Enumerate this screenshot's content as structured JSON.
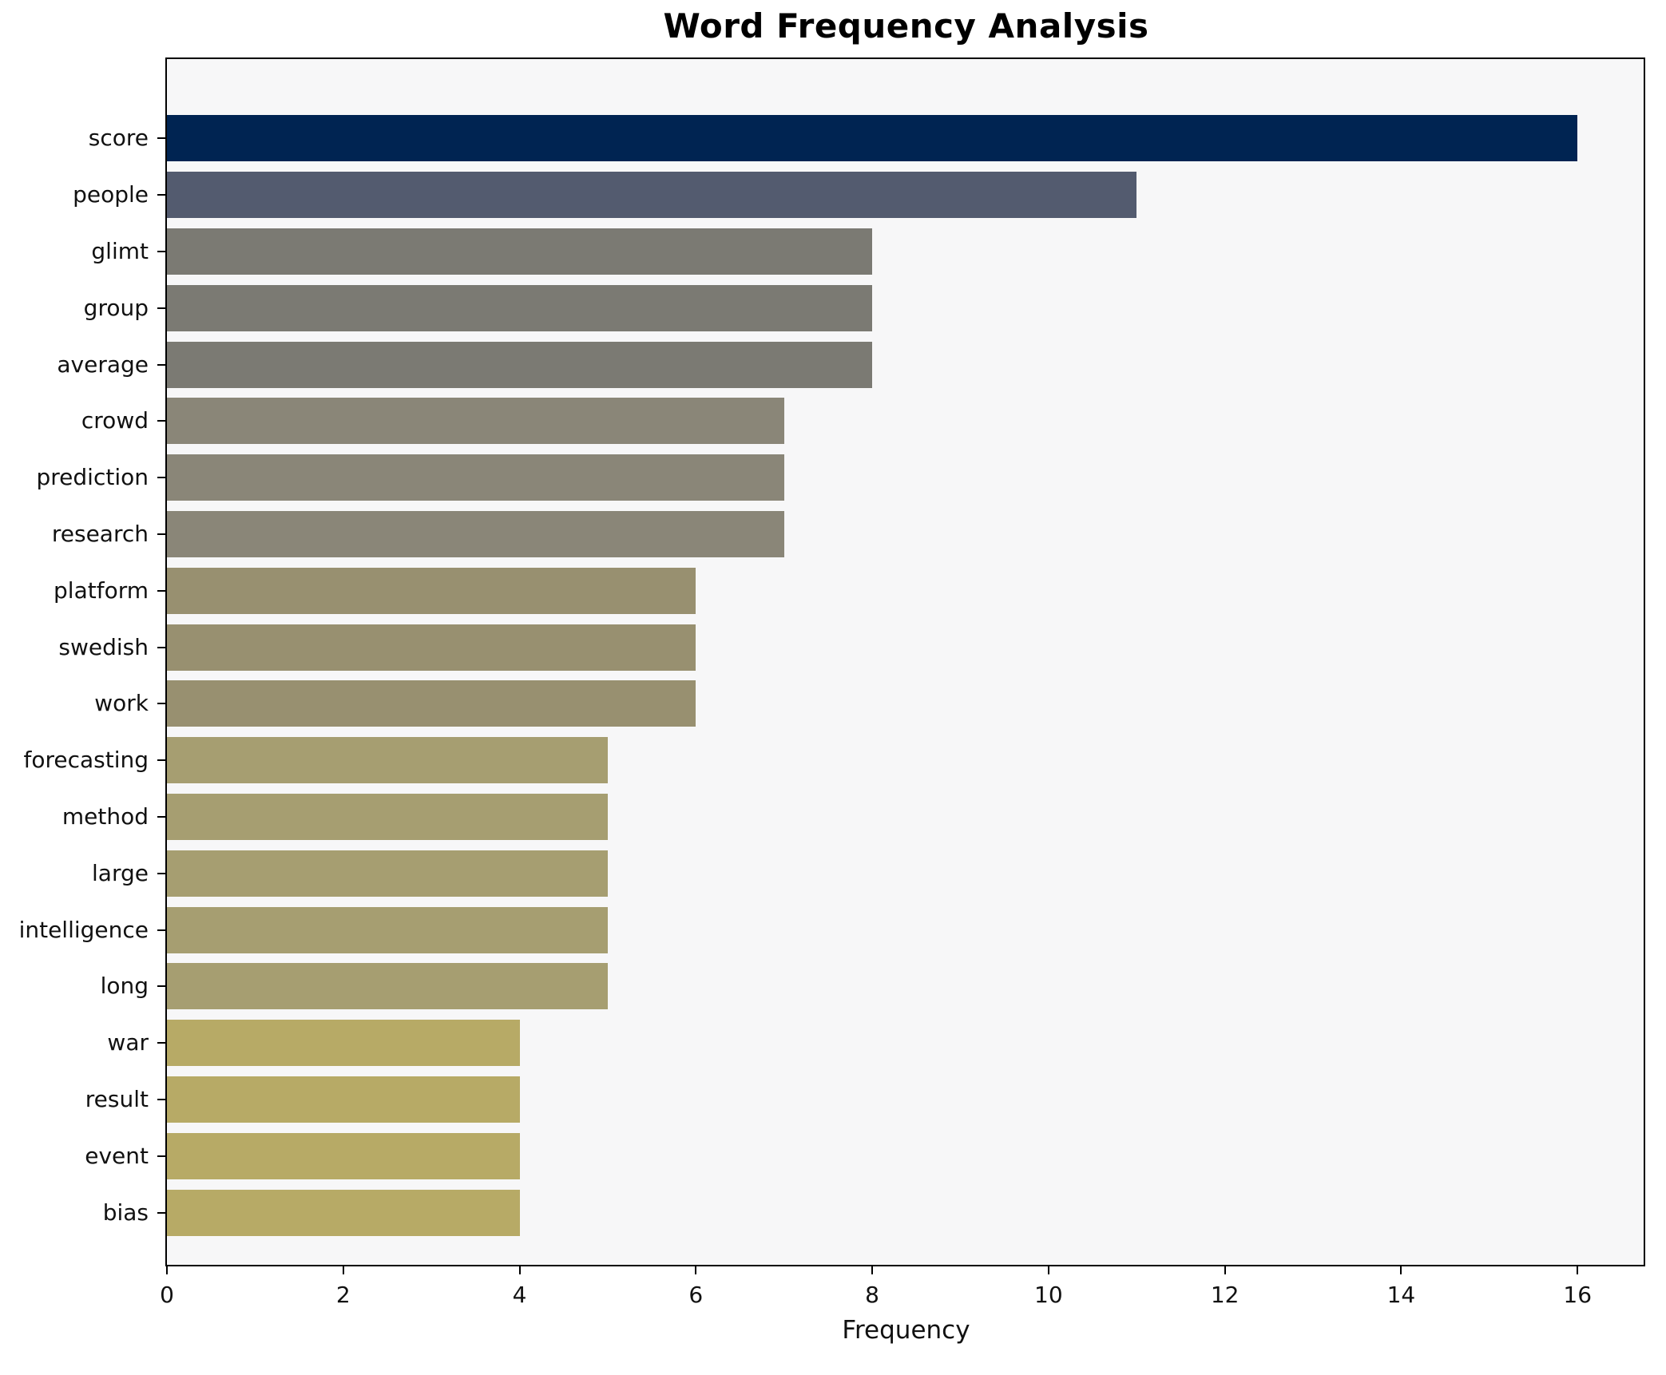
{
  "chart_data": {
    "type": "bar",
    "orientation": "horizontal",
    "title": "Word Frequency Analysis",
    "xlabel": "Frequency",
    "ylabel": "",
    "categories": [
      "score",
      "people",
      "glimt",
      "group",
      "average",
      "crowd",
      "prediction",
      "research",
      "platform",
      "swedish",
      "work",
      "forecasting",
      "method",
      "large",
      "intelligence",
      "long",
      "war",
      "result",
      "event",
      "bias"
    ],
    "values": [
      16,
      11,
      8,
      8,
      8,
      7,
      7,
      7,
      6,
      6,
      6,
      5,
      5,
      5,
      5,
      5,
      4,
      4,
      4,
      4
    ],
    "bar_colors": [
      "#002452",
      "#535b6f",
      "#7b7a73",
      "#7b7a73",
      "#7b7a73",
      "#8a8678",
      "#8a8678",
      "#8a8678",
      "#989070",
      "#989070",
      "#989070",
      "#a69e71",
      "#a69e71",
      "#a69e71",
      "#a69e71",
      "#a69e71",
      "#b7aa66",
      "#b7aa66",
      "#b7aa66",
      "#b7aa66"
    ],
    "xlim": [
      0,
      16.75
    ],
    "xticks": [
      0,
      2,
      4,
      6,
      8,
      10,
      12,
      14,
      16
    ],
    "grid": false,
    "legend": "none",
    "plot_background": "#f7f7f8",
    "figure_background": "#ffffff",
    "spine_color": "#000000",
    "text_color": "#111111"
  }
}
